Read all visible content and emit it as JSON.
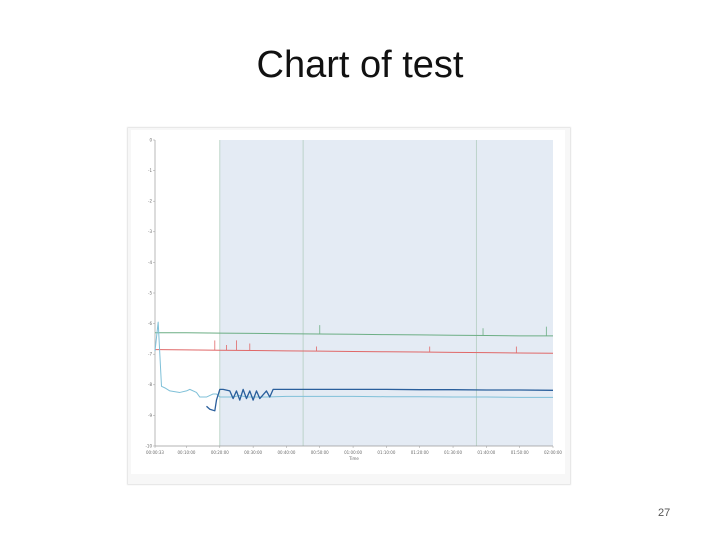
{
  "slide": {
    "title": "Chart of test",
    "page_number": "27"
  },
  "chart_data": {
    "type": "line",
    "xlabel": "Time",
    "ylabel": "",
    "x_ticks": [
      "00:00:33",
      "00:10:00",
      "00:20:00",
      "00:30:00",
      "00:40:00",
      "00:50:00",
      "01:00:00",
      "01:10:00",
      "01:20:00",
      "01:30:00",
      "01:40:00",
      "01:50:00",
      "02:00:00"
    ],
    "x_tick_minutes": [
      0.55,
      10,
      20,
      30,
      40,
      50,
      60,
      70,
      80,
      90,
      100,
      110,
      120
    ],
    "xlim": [
      0.55,
      120
    ],
    "y_ticks": [
      0,
      -1,
      -2,
      -3,
      -4,
      -5,
      -6,
      -7,
      -8,
      -9,
      -10
    ],
    "ylim": [
      -10,
      0
    ],
    "grid": false,
    "legend": "none",
    "shaded_region_minutes": [
      20,
      120
    ],
    "vertical_markers_minutes": [
      20,
      45,
      97
    ],
    "colors": {
      "background": "#ffffff",
      "shade": "#e4ebf4",
      "marker": "#b2cebf",
      "axis": "#9a9a9a"
    },
    "series": [
      {
        "color": "#6cae84",
        "x": [
          0.55,
          5,
          10,
          20,
          30,
          40,
          50,
          60,
          70,
          80,
          90,
          100,
          110,
          120
        ],
        "y": [
          -6.3,
          -6.3,
          -6.3,
          -6.31,
          -6.32,
          -6.33,
          -6.34,
          -6.35,
          -6.36,
          -6.37,
          -6.38,
          -6.39,
          -6.4,
          -6.4
        ],
        "spikes": [
          {
            "x": 50,
            "y": -6.05
          },
          {
            "x": 99,
            "y": -6.15
          },
          {
            "x": 118,
            "y": -6.1
          }
        ]
      },
      {
        "color": "#e06868",
        "x": [
          0.55,
          2,
          10,
          20,
          30,
          40,
          50,
          60,
          70,
          80,
          90,
          100,
          110,
          120
        ],
        "y": [
          -6.85,
          -6.85,
          -6.86,
          -6.87,
          -6.88,
          -6.89,
          -6.9,
          -6.91,
          -6.92,
          -6.93,
          -6.94,
          -6.95,
          -6.96,
          -6.97
        ],
        "spikes": [
          {
            "x": 18.5,
            "y": -6.55
          },
          {
            "x": 22,
            "y": -6.7
          },
          {
            "x": 25,
            "y": -6.55
          },
          {
            "x": 29,
            "y": -6.65
          },
          {
            "x": 49,
            "y": -6.75
          },
          {
            "x": 83,
            "y": -6.75
          },
          {
            "x": 109,
            "y": -6.75
          }
        ]
      },
      {
        "color": "#7fc0d8",
        "x": [
          0.55,
          1.5,
          2.5,
          3.5,
          5,
          8,
          10,
          11,
          13,
          14,
          16,
          18,
          19,
          20,
          22,
          24,
          26,
          28,
          30,
          32,
          34,
          40,
          50,
          60,
          70,
          80,
          90,
          100,
          110,
          120
        ],
        "y": [
          -6.9,
          -5.95,
          -8.05,
          -8.1,
          -8.2,
          -8.25,
          -8.2,
          -8.15,
          -8.25,
          -8.4,
          -8.4,
          -8.3,
          -8.3,
          -8.4,
          -8.4,
          -8.4,
          -8.35,
          -8.4,
          -8.4,
          -8.4,
          -8.4,
          -8.38,
          -8.38,
          -8.38,
          -8.39,
          -8.39,
          -8.4,
          -8.4,
          -8.41,
          -8.41
        ]
      },
      {
        "color": "#2a5f9c",
        "x": [
          16,
          17,
          18.5,
          19,
          20,
          21,
          23,
          24,
          25,
          26,
          27,
          28,
          29,
          30,
          31,
          32,
          34,
          35,
          36,
          38,
          40,
          50,
          60,
          70,
          80,
          90,
          100,
          110,
          120
        ],
        "y": [
          -8.7,
          -8.8,
          -8.85,
          -8.5,
          -8.15,
          -8.15,
          -8.2,
          -8.45,
          -8.2,
          -8.5,
          -8.15,
          -8.45,
          -8.2,
          -8.5,
          -8.2,
          -8.45,
          -8.2,
          -8.4,
          -8.15,
          -8.15,
          -8.15,
          -8.15,
          -8.15,
          -8.15,
          -8.16,
          -8.16,
          -8.17,
          -8.17,
          -8.18
        ]
      }
    ]
  }
}
